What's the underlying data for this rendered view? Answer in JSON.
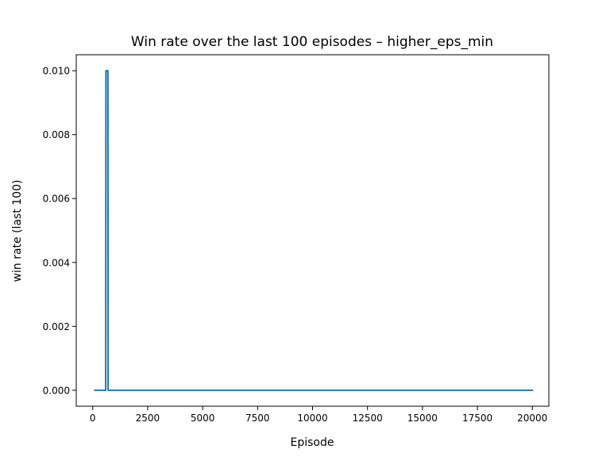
{
  "chart_data": {
    "type": "line",
    "title": "Win rate over the last 100 episodes – higher_eps_min",
    "xlabel": "Episode",
    "ylabel": "win rate (last 100)",
    "xlim": [
      -750,
      20750
    ],
    "ylim": [
      -0.0005,
      0.0105
    ],
    "xticks": [
      0,
      2500,
      5000,
      7500,
      10000,
      12500,
      15000,
      17500,
      20000
    ],
    "xtick_labels": [
      "0",
      "2500",
      "5000",
      "7500",
      "10000",
      "12500",
      "15000",
      "17500",
      "20000"
    ],
    "yticks": [
      0.0,
      0.002,
      0.004,
      0.006,
      0.008,
      0.01
    ],
    "ytick_labels": [
      "0.000",
      "0.002",
      "0.004",
      "0.006",
      "0.008",
      "0.010"
    ],
    "grid": false,
    "series": [
      {
        "color": "#1f77b4",
        "x": [
          100,
          590,
          600,
          690,
          700,
          20000
        ],
        "y": [
          0.0,
          0.0,
          0.01,
          0.01,
          0.0,
          0.0
        ]
      }
    ]
  }
}
